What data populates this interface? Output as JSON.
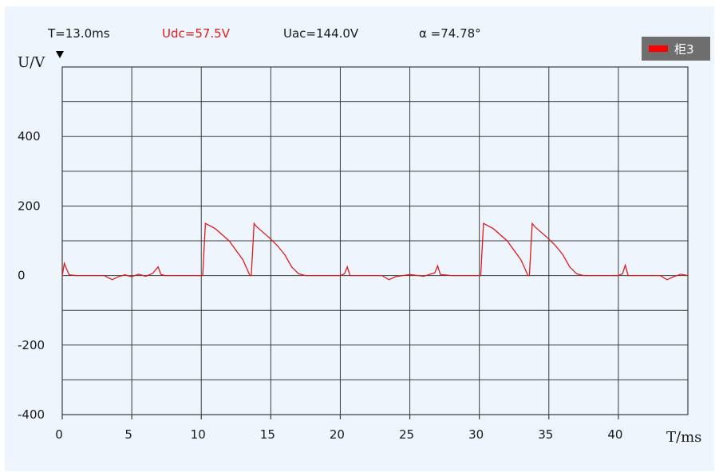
{
  "readouts": {
    "period": "T=13.0ms",
    "udc": "Udc=57.5V",
    "uac": "Uac=144.0V",
    "alpha": "α =74.78°"
  },
  "colors": {
    "series": "#e01b1b",
    "grid": "#3c3c3c",
    "background": "#eef5fc",
    "legend_bg": "#6e6e6e"
  },
  "chart_data": {
    "type": "line",
    "title": "",
    "xlabel": "T/ms",
    "ylabel": "U/V",
    "xlim": [
      0,
      45
    ],
    "ylim": [
      -400,
      600
    ],
    "xticks": [
      0,
      5,
      10,
      15,
      20,
      25,
      30,
      35,
      40
    ],
    "yticks": [
      -400,
      -200,
      0,
      200,
      400
    ],
    "grid": true,
    "legend_position": "top-right",
    "series": [
      {
        "name": "柜3",
        "color": "#e01b1b",
        "x": [
          0,
          0.15,
          0.3,
          0.5,
          1,
          2,
          3,
          3.3,
          3.6,
          4,
          4.5,
          5,
          5.5,
          6,
          6.5,
          6.9,
          7.1,
          7.4,
          8,
          9,
          10.1,
          10.3,
          11,
          12,
          13,
          13.5,
          13.6,
          13.8,
          14,
          15,
          15.5,
          16,
          16.5,
          17,
          17.5,
          18,
          19,
          20,
          20.3,
          20.5,
          20.7,
          21,
          22,
          23,
          23.5,
          24,
          25,
          26,
          26.8,
          27,
          27.2,
          28,
          29,
          30.1,
          30.3,
          31,
          32,
          33,
          33.5,
          33.6,
          33.8,
          34,
          35,
          35.5,
          36,
          36.5,
          37,
          37.5,
          38,
          39,
          40,
          40.3,
          40.5,
          40.7,
          41,
          42,
          43,
          43.5,
          44,
          44.5,
          45
        ],
        "y": [
          0,
          35,
          20,
          2,
          0,
          0,
          0,
          -6,
          -12,
          -4,
          2,
          -3,
          4,
          -2,
          6,
          25,
          3,
          0,
          0,
          0,
          0,
          150,
          135,
          100,
          45,
          0,
          0,
          150,
          140,
          105,
          85,
          60,
          25,
          5,
          0,
          0,
          0,
          0,
          5,
          25,
          0,
          0,
          0,
          0,
          -12,
          -3,
          3,
          -2,
          8,
          28,
          3,
          0,
          0,
          0,
          150,
          135,
          100,
          45,
          0,
          0,
          150,
          140,
          105,
          85,
          60,
          25,
          5,
          0,
          0,
          0,
          0,
          5,
          30,
          0,
          0,
          0,
          0,
          -12,
          -3,
          4,
          0
        ]
      }
    ]
  }
}
